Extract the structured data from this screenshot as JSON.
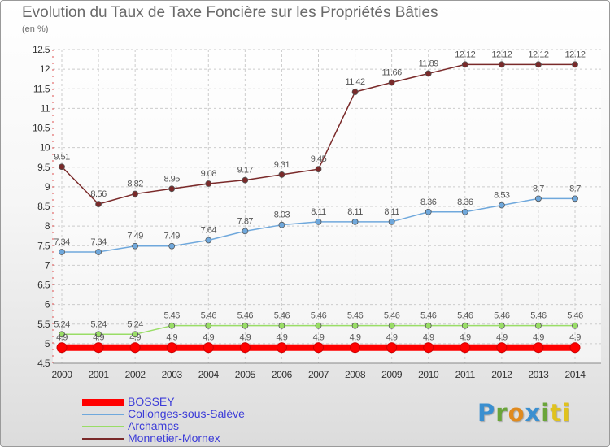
{
  "header": {
    "title": "Evolution du Taux de Taxe Foncière sur les Propriétés Bâties",
    "unit": "(en %)"
  },
  "brand": {
    "text": "Proxiti",
    "letters": [
      "P",
      "r",
      "o",
      "x",
      "i",
      "ti"
    ]
  },
  "chart_data": {
    "type": "line",
    "title": "Evolution du Taux de Taxe Foncière sur les Propriétés Bâties",
    "ylabel": "(en %)",
    "xlabel": "",
    "x": [
      "2000",
      "2001",
      "2002",
      "2003",
      "2004",
      "2005",
      "2006",
      "2007",
      "2008",
      "2009",
      "2010",
      "2011",
      "2012",
      "2013",
      "2014"
    ],
    "ylim": [
      4.5,
      12.5
    ],
    "yticks": [
      "4.5",
      "5",
      "5.5",
      "6",
      "6.5",
      "7",
      "7.5",
      "8",
      "8.5",
      "9",
      "9.5",
      "10",
      "10.5",
      "11",
      "11.5",
      "12",
      "12.5"
    ],
    "grid": true,
    "legend_position": "bottom-left",
    "series": [
      {
        "name": "BOSSEY",
        "color": "#ff0000",
        "values": [
          4.9,
          4.9,
          4.9,
          4.9,
          4.9,
          4.9,
          4.9,
          4.9,
          4.9,
          4.9,
          4.9,
          4.9,
          4.9,
          4.9,
          4.9
        ],
        "labels": [
          "4.9",
          "4.9",
          "4.9",
          "4.9",
          "4.9",
          "4.9",
          "4.9",
          "4.9",
          "4.9",
          "4.9",
          "4.9",
          "4.9",
          "4.9",
          "4.9",
          "4.9"
        ]
      },
      {
        "name": "Collonges-sous-Salève",
        "color": "#6fa8dc",
        "values": [
          7.34,
          7.34,
          7.49,
          7.49,
          7.64,
          7.87,
          8.03,
          8.11,
          8.11,
          8.11,
          8.36,
          8.36,
          8.53,
          8.7,
          8.7
        ],
        "labels": [
          "7.34",
          "7.34",
          "7.49",
          "7.49",
          "7.64",
          "7.87",
          "8.03",
          "8.11",
          "8.11",
          "8.11",
          "8.36",
          "8.36",
          "8.53",
          "8.7",
          "8.7"
        ]
      },
      {
        "name": "Archamps",
        "color": "#99dd66",
        "values": [
          5.24,
          5.24,
          5.24,
          5.46,
          5.46,
          5.46,
          5.46,
          5.46,
          5.46,
          5.46,
          5.46,
          5.46,
          5.46,
          5.46,
          5.46
        ],
        "labels": [
          "5.24",
          "5.24",
          "5.24",
          "5.46",
          "5.46",
          "5.46",
          "5.46",
          "5.46",
          "5.46",
          "5.46",
          "5.46",
          "5.46",
          "5.46",
          "5.46",
          "5.46"
        ]
      },
      {
        "name": "Monnetier-Mornex",
        "color": "#7a2a2a",
        "values": [
          9.51,
          8.56,
          8.82,
          8.95,
          9.08,
          9.17,
          9.31,
          9.45,
          11.42,
          11.66,
          11.89,
          12.12,
          12.12,
          12.12,
          12.12
        ],
        "labels": [
          "9.51",
          "8.56",
          "8.82",
          "8.95",
          "9.08",
          "9.17",
          "9.31",
          "9.45",
          "11.42",
          "11.66",
          "11.89",
          "12.12",
          "12.12",
          "12.12",
          "12.12"
        ]
      }
    ]
  }
}
